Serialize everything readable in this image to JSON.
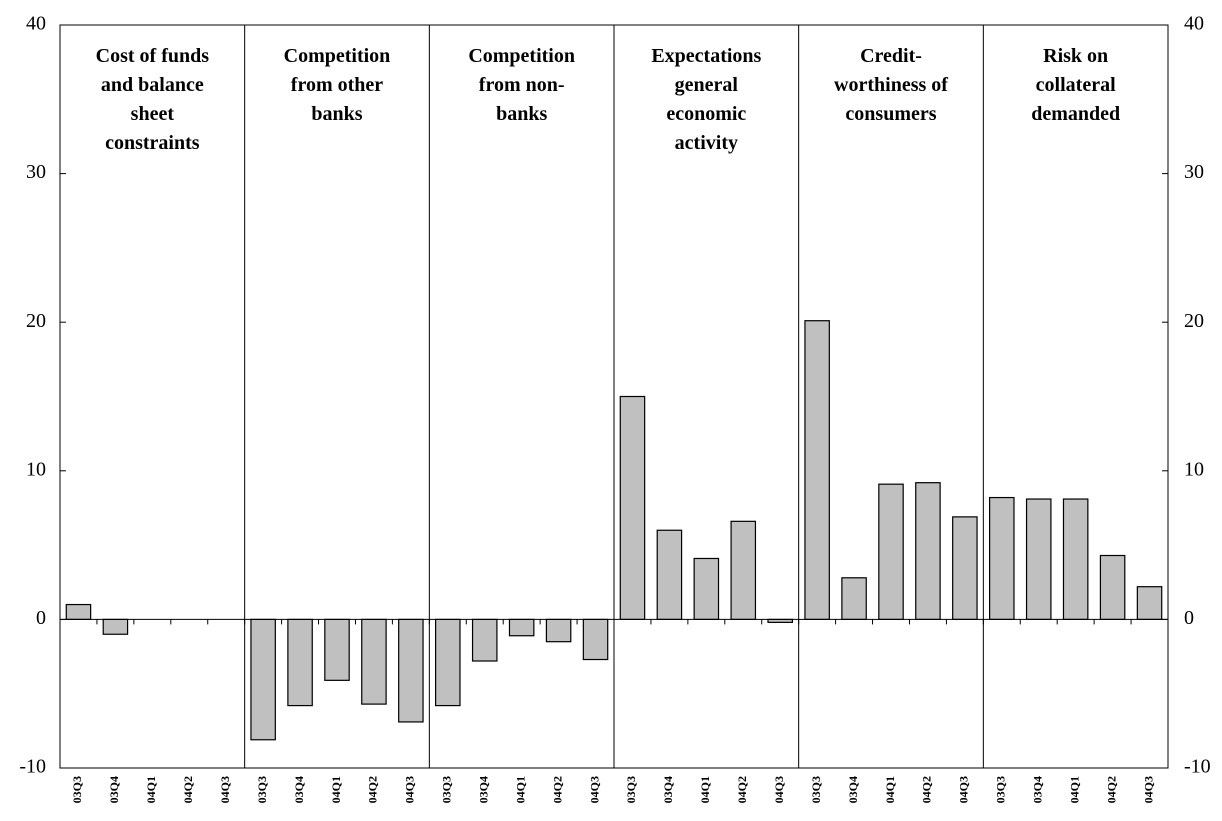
{
  "chart_data": {
    "type": "bar",
    "color": "#c0c0c0",
    "ylim": [
      -10,
      40
    ],
    "yticks": [
      -10,
      0,
      10,
      20,
      30,
      40
    ],
    "y2lim": [
      -10,
      40
    ],
    "y2ticks": [
      -10,
      0,
      10,
      20,
      30,
      40
    ],
    "groups": [
      {
        "name": "Cost of funds\nand balance\nsheet\nconstraints",
        "categories": [
          "03Q3",
          "03Q4",
          "04Q1",
          "04Q2",
          "04Q3"
        ],
        "values": [
          1.0,
          -1.0,
          0,
          0,
          0
        ]
      },
      {
        "name": "Competition\nfrom other\nbanks",
        "categories": [
          "03Q3",
          "03Q4",
          "04Q1",
          "04Q2",
          "04Q3"
        ],
        "values": [
          -8.1,
          -5.8,
          -4.1,
          -5.7,
          -6.9
        ]
      },
      {
        "name": "Competition\nfrom non-\nbanks",
        "categories": [
          "03Q3",
          "03Q4",
          "04Q1",
          "04Q2",
          "04Q3"
        ],
        "values": [
          -5.8,
          -2.8,
          -1.1,
          -1.5,
          -2.7
        ]
      },
      {
        "name": "Expectations\ngeneral\neconomic\nactivity",
        "categories": [
          "03Q3",
          "03Q4",
          "04Q1",
          "04Q2",
          "04Q3"
        ],
        "values": [
          15.0,
          6.0,
          4.1,
          6.6,
          -0.2
        ]
      },
      {
        "name": "Credit-\nworthiness of\nconsumers",
        "categories": [
          "03Q3",
          "03Q4",
          "04Q1",
          "04Q2",
          "04Q3"
        ],
        "values": [
          20.1,
          2.8,
          9.1,
          9.2,
          6.9
        ]
      },
      {
        "name": "Risk on\ncollateral\ndemanded",
        "categories": [
          "03Q3",
          "03Q4",
          "04Q1",
          "04Q2",
          "04Q3"
        ],
        "values": [
          8.2,
          8.1,
          8.1,
          4.3,
          2.2
        ]
      }
    ]
  }
}
